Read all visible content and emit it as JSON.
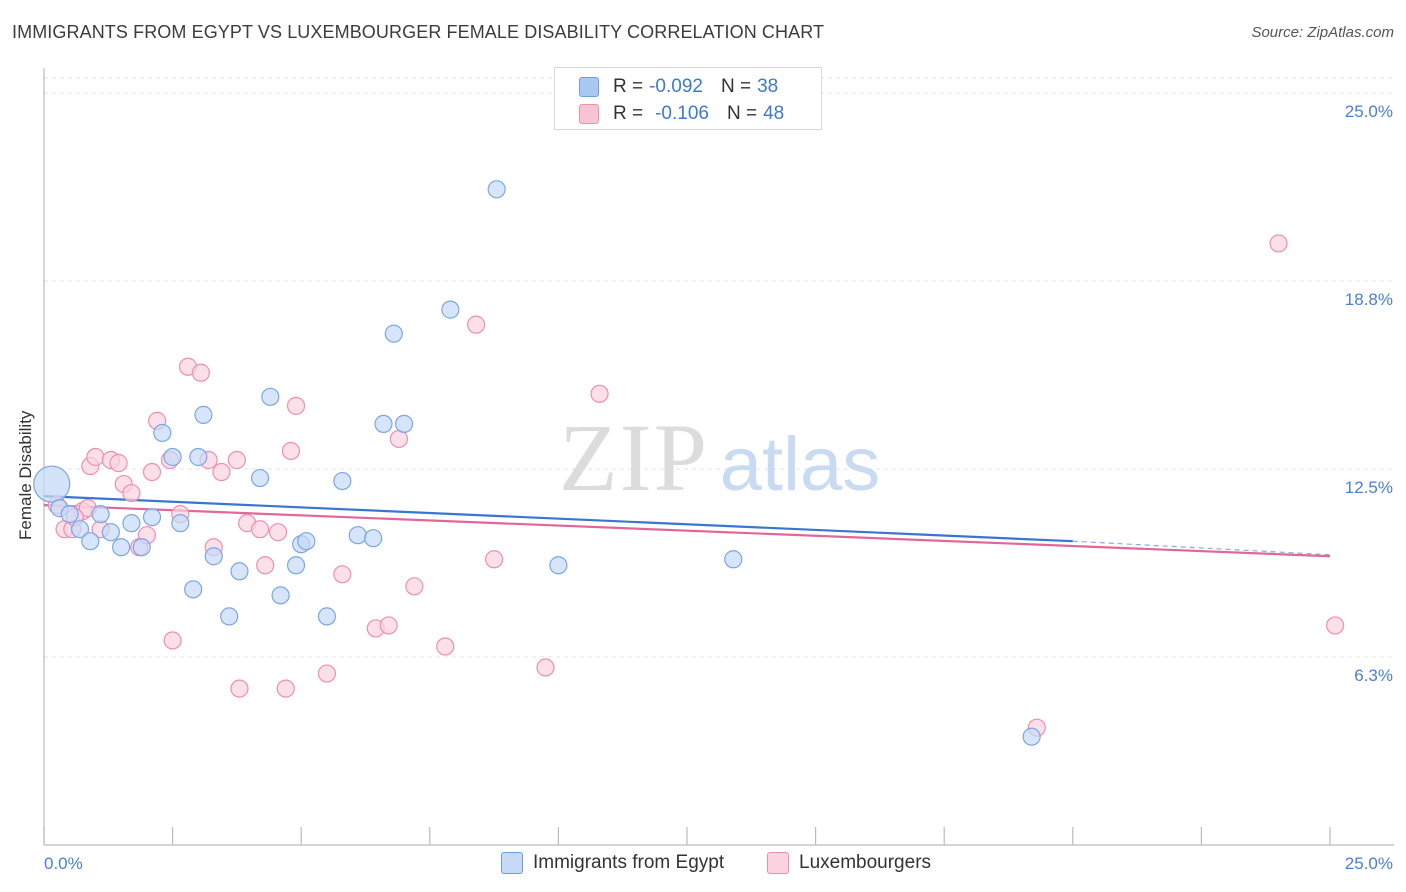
{
  "title": "IMMIGRANTS FROM EGYPT VS LUXEMBOURGER FEMALE DISABILITY CORRELATION CHART",
  "source": "Source: ZipAtlas.com",
  "watermark": {
    "zip": "ZIP",
    "atlas": "atlas"
  },
  "legend_top": {
    "rows": [
      {
        "r_label": "R =",
        "r_value": "-0.092",
        "n_label": "N =",
        "n_value": "38",
        "color": "#a9c8f2",
        "border": "#6f9fe0"
      },
      {
        "r_label": "R =",
        "r_value": "-0.106",
        "n_label": "N =",
        "n_value": "48",
        "color": "#f8c4d4",
        "border": "#ee8fad"
      }
    ]
  },
  "legend_bottom": [
    {
      "label": "Immigrants from Egypt",
      "color": "#c5daf6",
      "border": "#6f9fe0"
    },
    {
      "label": "Luxembourgers",
      "color": "#fbd3df",
      "border": "#ee8fad"
    }
  ],
  "chart_data": {
    "type": "scatter",
    "title": "IMMIGRANTS FROM EGYPT VS LUXEMBOURGER FEMALE DISABILITY CORRELATION CHART",
    "xlabel": "",
    "ylabel": "Female Disability",
    "x_tick_labels": [
      "0.0%",
      "25.0%"
    ],
    "y_tick_labels": [
      "25.0%",
      "18.8%",
      "12.5%",
      "6.3%"
    ],
    "y_ticks": [
      25.0,
      18.75,
      12.5,
      6.25
    ],
    "xlim": [
      0,
      25
    ],
    "ylim": [
      0,
      25.5
    ],
    "grid": true,
    "legend_position": "top-center",
    "series": [
      {
        "name": "Immigrants from Egypt",
        "color": "#7aa7e6",
        "fill": "#c5daf6",
        "trend": {
          "x": [
            0.0,
            20.0
          ],
          "y": [
            11.6,
            10.1
          ],
          "dashed_to": [
            25.0,
            9.65
          ],
          "color": "#3a75d0"
        },
        "points": [
          [
            0.15,
            12.0
          ],
          [
            0.3,
            11.2
          ],
          [
            0.5,
            11.0
          ],
          [
            0.7,
            10.5
          ],
          [
            0.9,
            10.1
          ],
          [
            1.1,
            11.0
          ],
          [
            1.3,
            10.4
          ],
          [
            1.5,
            9.9
          ],
          [
            1.7,
            10.7
          ],
          [
            1.9,
            9.9
          ],
          [
            2.1,
            10.9
          ],
          [
            2.3,
            13.7
          ],
          [
            2.5,
            12.9
          ],
          [
            2.65,
            10.7
          ],
          [
            2.9,
            8.5
          ],
          [
            3.0,
            12.9
          ],
          [
            3.1,
            14.3
          ],
          [
            3.3,
            9.6
          ],
          [
            3.6,
            7.6
          ],
          [
            3.8,
            9.1
          ],
          [
            4.2,
            12.2
          ],
          [
            4.4,
            14.9
          ],
          [
            4.6,
            8.3
          ],
          [
            4.9,
            9.3
          ],
          [
            5.0,
            10.0
          ],
          [
            5.1,
            10.1
          ],
          [
            5.5,
            7.6
          ],
          [
            5.8,
            12.1
          ],
          [
            6.1,
            10.3
          ],
          [
            6.4,
            10.2
          ],
          [
            6.6,
            14.0
          ],
          [
            6.8,
            17.0
          ],
          [
            7.0,
            14.0
          ],
          [
            7.9,
            17.8
          ],
          [
            8.8,
            21.8
          ],
          [
            10.0,
            9.3
          ],
          [
            13.4,
            9.5
          ],
          [
            19.2,
            3.6
          ]
        ]
      },
      {
        "name": "Luxembourgers",
        "color": "#ee8fad",
        "fill": "#fbd3df",
        "trend": {
          "x": [
            0.0,
            25.0
          ],
          "y": [
            11.3,
            9.6
          ],
          "color": "#e2669a"
        },
        "points": [
          [
            0.25,
            11.3
          ],
          [
            0.4,
            10.5
          ],
          [
            0.55,
            10.5
          ],
          [
            0.75,
            11.1
          ],
          [
            0.85,
            11.2
          ],
          [
            0.9,
            12.6
          ],
          [
            1.0,
            12.9
          ],
          [
            1.1,
            10.5
          ],
          [
            1.3,
            12.8
          ],
          [
            1.45,
            12.7
          ],
          [
            1.55,
            12.0
          ],
          [
            1.7,
            11.7
          ],
          [
            1.85,
            9.9
          ],
          [
            2.0,
            10.3
          ],
          [
            2.1,
            12.4
          ],
          [
            2.2,
            14.1
          ],
          [
            2.45,
            12.8
          ],
          [
            2.5,
            6.8
          ],
          [
            2.65,
            11.0
          ],
          [
            2.8,
            15.9
          ],
          [
            3.05,
            15.7
          ],
          [
            3.2,
            12.8
          ],
          [
            3.3,
            9.9
          ],
          [
            3.45,
            12.4
          ],
          [
            3.75,
            12.8
          ],
          [
            3.8,
            5.2
          ],
          [
            3.95,
            10.7
          ],
          [
            4.2,
            10.5
          ],
          [
            4.3,
            9.3
          ],
          [
            4.55,
            10.4
          ],
          [
            4.7,
            5.2
          ],
          [
            4.8,
            13.1
          ],
          [
            4.9,
            14.6
          ],
          [
            5.5,
            5.7
          ],
          [
            5.8,
            9.0
          ],
          [
            6.45,
            7.2
          ],
          [
            6.7,
            7.3
          ],
          [
            6.9,
            13.5
          ],
          [
            7.2,
            8.6
          ],
          [
            7.8,
            6.6
          ],
          [
            8.4,
            17.3
          ],
          [
            8.75,
            9.5
          ],
          [
            9.75,
            5.9
          ],
          [
            10.8,
            15.0
          ],
          [
            19.3,
            3.9
          ],
          [
            24.0,
            20.0
          ],
          [
            25.1,
            7.3
          ],
          [
            0.6,
            10.9
          ]
        ]
      }
    ]
  }
}
